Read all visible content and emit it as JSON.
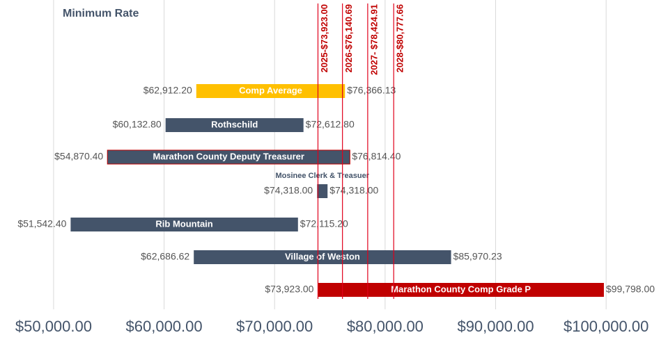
{
  "chart_data": {
    "type": "range-bar",
    "title": "Minimum Rate",
    "categories": [
      "Comp Average",
      "Rothschild",
      "Marathon County Deputy Treasurer",
      "Mosinee Clerk & Treasuer",
      "Rib Mountain",
      "Village of Weston",
      "Marathon County Comp Grade P"
    ],
    "low": [
      62912.2,
      60132.8,
      54870.4,
      74318.0,
      51542.4,
      62686.62,
      73923.0
    ],
    "high": [
      76366.13,
      72612.8,
      76814.4,
      74318.0,
      72115.2,
      85970.23,
      99798.0
    ],
    "low_labels": [
      "$62,912.20",
      "$60,132.80",
      "$54,870.40",
      "$74,318.00",
      "$51,542.40",
      "$62,686.62",
      "$73,923.00"
    ],
    "high_labels": [
      "$76,366.13",
      "$72,612.80",
      "$76,814.40",
      "$74,318.00",
      "$72,115.20",
      "$85,970.23",
      "$99,798.00"
    ],
    "colors": [
      "#ffc000",
      "#44546a",
      "#44546a",
      "#44546a",
      "#44546a",
      "#44546a",
      "#c00000"
    ],
    "reference_lines": [
      {
        "value": 73923.0,
        "label": "2025-$73,923.00"
      },
      {
        "value": 76140.69,
        "label": "2026-$76,140.69"
      },
      {
        "value": 78424.91,
        "label": "2027- $78,424.91"
      },
      {
        "value": 80777.66,
        "label": "2028-$80,777.66"
      }
    ],
    "reference_color": "#e0001b",
    "xlim": [
      45150,
      105600
    ],
    "xticks": [
      {
        "value": 50000,
        "label": "$50,000.00"
      },
      {
        "value": 60000,
        "label": "$60,000.00"
      },
      {
        "value": 70000,
        "label": "$70,000.00"
      },
      {
        "value": 80000,
        "label": "$80,000.00"
      },
      {
        "value": 90000,
        "label": "$90,000.00"
      },
      {
        "value": 100000,
        "label": "$100,000.00"
      }
    ],
    "grid": true
  }
}
